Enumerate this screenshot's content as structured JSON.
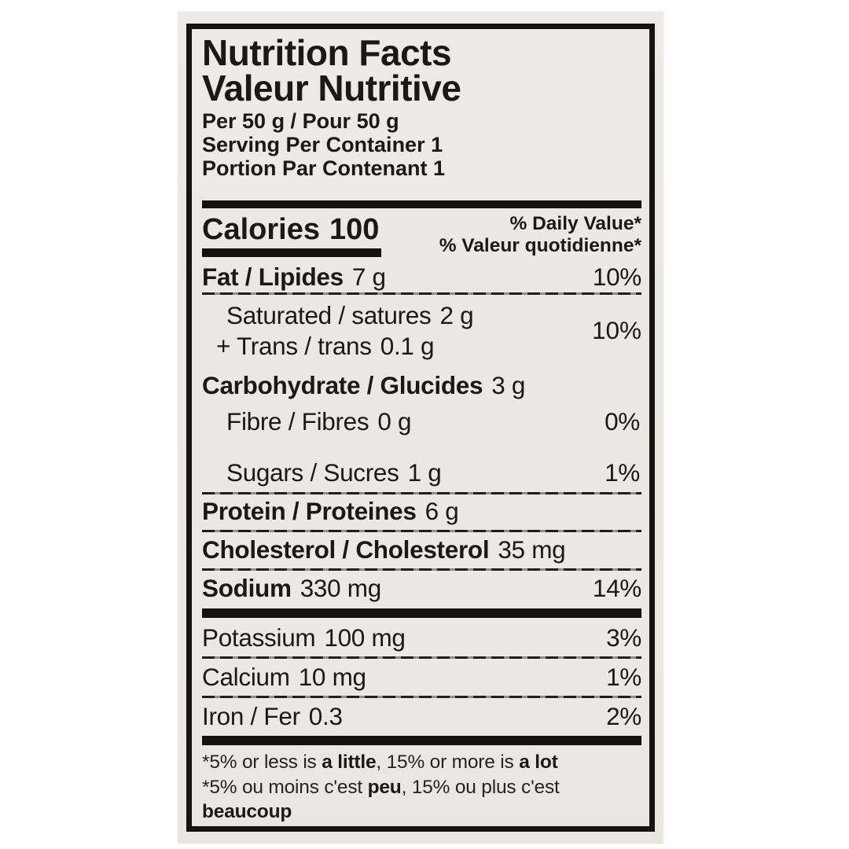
{
  "label": {
    "title_en": "Nutrition Facts",
    "title_fr": "Valeur Nutritive",
    "serving_size": "Per 50 g / Pour 50 g",
    "servings_en": "Serving Per Container 1",
    "servings_fr": "Portion Par Contenant 1",
    "calories_label": "Calories",
    "calories_value": "100",
    "dv_header_en": "% Daily Value*",
    "dv_header_fr": "% Valeur quotidienne*",
    "rows": [
      {
        "name": "fat",
        "label": "Fat / Lipides",
        "value": "7 g",
        "pct": "10%"
      },
      {
        "name": "saturated",
        "label": "Saturated / satures",
        "value": "2 g",
        "pct": "10%"
      },
      {
        "name": "trans",
        "label": "+ Trans / trans",
        "value": "0.1 g",
        "pct": ""
      },
      {
        "name": "carbohydrate",
        "label": "Carbohydrate / Glucides",
        "value": "3 g",
        "pct": ""
      },
      {
        "name": "fibre",
        "label": "Fibre / Fibres",
        "value": "0 g",
        "pct": "0%"
      },
      {
        "name": "sugars",
        "label": "Sugars / Sucres",
        "value": "1 g",
        "pct": "1%"
      },
      {
        "name": "protein",
        "label": "Protein / Proteines",
        "value": "6 g",
        "pct": ""
      },
      {
        "name": "cholesterol",
        "label": "Cholesterol / Cholesterol",
        "value": "35 mg",
        "pct": ""
      },
      {
        "name": "sodium",
        "label": "Sodium",
        "value": "330 mg",
        "pct": "14%"
      },
      {
        "name": "potassium",
        "label": "Potassium",
        "value": "100 mg",
        "pct": "3%"
      },
      {
        "name": "calcium",
        "label": "Calcium",
        "value": "10 mg",
        "pct": "1%"
      },
      {
        "name": "iron",
        "label": "Iron / Fer",
        "value": "0.3",
        "pct": "2%"
      }
    ],
    "footnote": {
      "l1a": "*5% or less is ",
      "l1b": "a little",
      "l1c": ", 15% or more is ",
      "l1d": "a lot",
      "l2a": "*5% ou moins c'est ",
      "l2b": "peu",
      "l2c": ", 15% ou plus c'est",
      "l3": "beaucoup"
    }
  },
  "colors": {
    "paper": "#ebe8e2",
    "ink": "#1b1815",
    "bar": "#15120e"
  }
}
